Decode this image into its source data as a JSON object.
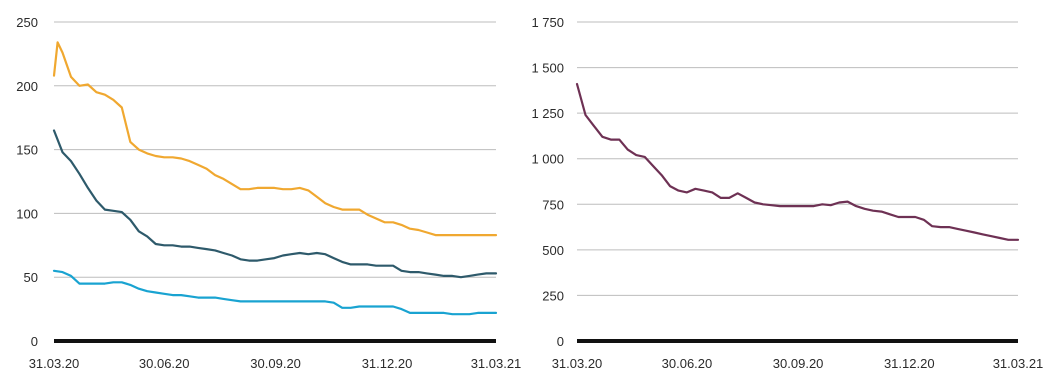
{
  "chart_data": [
    {
      "type": "line",
      "ylim": [
        0,
        250
      ],
      "yticks": [
        0,
        50,
        100,
        150,
        200,
        250
      ],
      "ytick_labels": [
        "0",
        "50",
        "100",
        "150",
        "200",
        "250"
      ],
      "xlim": [
        "2020-03-31",
        "2021-03-31"
      ],
      "xticks": [
        "2020-03-31",
        "2020-06-30",
        "2020-09-30",
        "2020-12-31",
        "2021-03-31"
      ],
      "xtick_labels": [
        "31.03.20",
        "30.06.20",
        "30.09.20",
        "31.12.20",
        "31.03.21"
      ],
      "grid": true,
      "series": [
        {
          "color": "#f0a830",
          "x": [
            "2020-03-31",
            "2020-04-03",
            "2020-04-07",
            "2020-04-14",
            "2020-04-21",
            "2020-04-28",
            "2020-05-05",
            "2020-05-12",
            "2020-05-19",
            "2020-05-26",
            "2020-06-02",
            "2020-06-09",
            "2020-06-16",
            "2020-06-23",
            "2020-06-30",
            "2020-07-07",
            "2020-07-14",
            "2020-07-21",
            "2020-07-28",
            "2020-08-04",
            "2020-08-11",
            "2020-08-18",
            "2020-08-25",
            "2020-09-01",
            "2020-09-08",
            "2020-09-15",
            "2020-09-22",
            "2020-09-29",
            "2020-10-06",
            "2020-10-13",
            "2020-10-20",
            "2020-10-27",
            "2020-11-03",
            "2020-11-10",
            "2020-11-17",
            "2020-11-24",
            "2020-12-01",
            "2020-12-08",
            "2020-12-15",
            "2020-12-22",
            "2020-12-29",
            "2021-01-05",
            "2021-01-12",
            "2021-01-19",
            "2021-01-26",
            "2021-02-02",
            "2021-02-09",
            "2021-02-16",
            "2021-02-23",
            "2021-03-02",
            "2021-03-09",
            "2021-03-16",
            "2021-03-23",
            "2021-03-31"
          ],
          "values": [
            208,
            234,
            226,
            207,
            200,
            201,
            195,
            193,
            189,
            183,
            156,
            150,
            147,
            145,
            144,
            144,
            143,
            141,
            138,
            135,
            130,
            127,
            123,
            119,
            119,
            120,
            120,
            120,
            119,
            119,
            120,
            118,
            113,
            108,
            105,
            103,
            103,
            103,
            99,
            96,
            93,
            93,
            91,
            88,
            87,
            85,
            83,
            83,
            83,
            83,
            83,
            83,
            83,
            83
          ]
        },
        {
          "color": "#2e5a6b",
          "x": [
            "2020-03-31",
            "2020-04-07",
            "2020-04-14",
            "2020-04-21",
            "2020-04-28",
            "2020-05-05",
            "2020-05-12",
            "2020-05-19",
            "2020-05-26",
            "2020-06-02",
            "2020-06-09",
            "2020-06-16",
            "2020-06-23",
            "2020-06-30",
            "2020-07-07",
            "2020-07-14",
            "2020-07-21",
            "2020-07-28",
            "2020-08-04",
            "2020-08-11",
            "2020-08-18",
            "2020-08-25",
            "2020-09-01",
            "2020-09-08",
            "2020-09-15",
            "2020-09-22",
            "2020-09-29",
            "2020-10-06",
            "2020-10-13",
            "2020-10-20",
            "2020-10-27",
            "2020-11-03",
            "2020-11-10",
            "2020-11-17",
            "2020-11-24",
            "2020-12-01",
            "2020-12-08",
            "2020-12-15",
            "2020-12-22",
            "2020-12-29",
            "2021-01-05",
            "2021-01-12",
            "2021-01-19",
            "2021-01-26",
            "2021-02-02",
            "2021-02-09",
            "2021-02-16",
            "2021-02-23",
            "2021-03-02",
            "2021-03-09",
            "2021-03-16",
            "2021-03-23",
            "2021-03-31"
          ],
          "values": [
            165,
            148,
            141,
            131,
            120,
            110,
            103,
            102,
            101,
            95,
            86,
            82,
            76,
            75,
            75,
            74,
            74,
            73,
            72,
            71,
            69,
            67,
            64,
            63,
            63,
            64,
            65,
            67,
            68,
            69,
            68,
            69,
            68,
            65,
            62,
            60,
            60,
            60,
            59,
            59,
            59,
            55,
            54,
            54,
            53,
            52,
            51,
            51,
            50,
            51,
            52,
            53,
            53
          ]
        },
        {
          "color": "#19a3d1",
          "x": [
            "2020-03-31",
            "2020-04-07",
            "2020-04-14",
            "2020-04-21",
            "2020-04-28",
            "2020-05-05",
            "2020-05-12",
            "2020-05-19",
            "2020-05-26",
            "2020-06-02",
            "2020-06-09",
            "2020-06-16",
            "2020-06-23",
            "2020-06-30",
            "2020-07-07",
            "2020-07-14",
            "2020-07-21",
            "2020-07-28",
            "2020-08-04",
            "2020-08-11",
            "2020-08-18",
            "2020-08-25",
            "2020-09-01",
            "2020-09-08",
            "2020-09-15",
            "2020-09-22",
            "2020-09-29",
            "2020-10-06",
            "2020-10-13",
            "2020-10-20",
            "2020-10-27",
            "2020-11-03",
            "2020-11-10",
            "2020-11-17",
            "2020-11-24",
            "2020-12-01",
            "2020-12-08",
            "2020-12-15",
            "2020-12-22",
            "2020-12-29",
            "2021-01-05",
            "2021-01-12",
            "2021-01-19",
            "2021-01-26",
            "2021-02-02",
            "2021-02-09",
            "2021-02-16",
            "2021-02-23",
            "2021-03-02",
            "2021-03-09",
            "2021-03-16",
            "2021-03-23",
            "2021-03-31"
          ],
          "values": [
            55,
            54,
            51,
            45,
            45,
            45,
            45,
            46,
            46,
            44,
            41,
            39,
            38,
            37,
            36,
            36,
            35,
            34,
            34,
            34,
            33,
            32,
            31,
            31,
            31,
            31,
            31,
            31,
            31,
            31,
            31,
            31,
            31,
            30,
            26,
            26,
            27,
            27,
            27,
            27,
            27,
            25,
            22,
            22,
            22,
            22,
            22,
            21,
            21,
            21,
            22,
            22,
            22
          ]
        }
      ]
    },
    {
      "type": "line",
      "ylim": [
        0,
        1750
      ],
      "yticks": [
        0,
        250,
        500,
        750,
        1000,
        1250,
        1500,
        1750
      ],
      "ytick_labels": [
        "0",
        "250",
        "500",
        "750",
        "1 000",
        "1 250",
        "1 500",
        "1 750"
      ],
      "xlim": [
        "2020-03-31",
        "2021-03-31"
      ],
      "xticks": [
        "2020-03-31",
        "2020-06-30",
        "2020-09-30",
        "2020-12-31",
        "2021-03-31"
      ],
      "xtick_labels": [
        "31.03.20",
        "30.06.20",
        "30.09.20",
        "31.12.20",
        "31.03.21"
      ],
      "grid": true,
      "series": [
        {
          "color": "#6e3154",
          "x": [
            "2020-03-31",
            "2020-04-07",
            "2020-04-14",
            "2020-04-21",
            "2020-04-28",
            "2020-05-05",
            "2020-05-12",
            "2020-05-19",
            "2020-05-26",
            "2020-06-02",
            "2020-06-09",
            "2020-06-16",
            "2020-06-23",
            "2020-06-30",
            "2020-07-07",
            "2020-07-14",
            "2020-07-21",
            "2020-07-28",
            "2020-08-04",
            "2020-08-11",
            "2020-08-18",
            "2020-08-25",
            "2020-09-01",
            "2020-09-08",
            "2020-09-15",
            "2020-09-22",
            "2020-09-29",
            "2020-10-06",
            "2020-10-13",
            "2020-10-20",
            "2020-10-27",
            "2020-11-03",
            "2020-11-10",
            "2020-11-17",
            "2020-11-24",
            "2020-12-01",
            "2020-12-08",
            "2020-12-15",
            "2020-12-22",
            "2020-12-29",
            "2021-01-05",
            "2021-01-12",
            "2021-01-19",
            "2021-01-26",
            "2021-02-02",
            "2021-02-09",
            "2021-02-16",
            "2021-02-23",
            "2021-03-02",
            "2021-03-09",
            "2021-03-16",
            "2021-03-23",
            "2021-03-31"
          ],
          "values": [
            1410,
            1240,
            1180,
            1120,
            1105,
            1105,
            1050,
            1020,
            1010,
            960,
            910,
            850,
            825,
            815,
            835,
            825,
            815,
            785,
            785,
            810,
            785,
            760,
            750,
            745,
            740,
            740,
            740,
            740,
            740,
            750,
            745,
            760,
            765,
            740,
            725,
            715,
            710,
            695,
            680,
            680,
            680,
            665,
            630,
            625,
            625,
            615,
            605,
            595,
            585,
            575,
            565,
            555,
            555
          ]
        }
      ]
    }
  ]
}
